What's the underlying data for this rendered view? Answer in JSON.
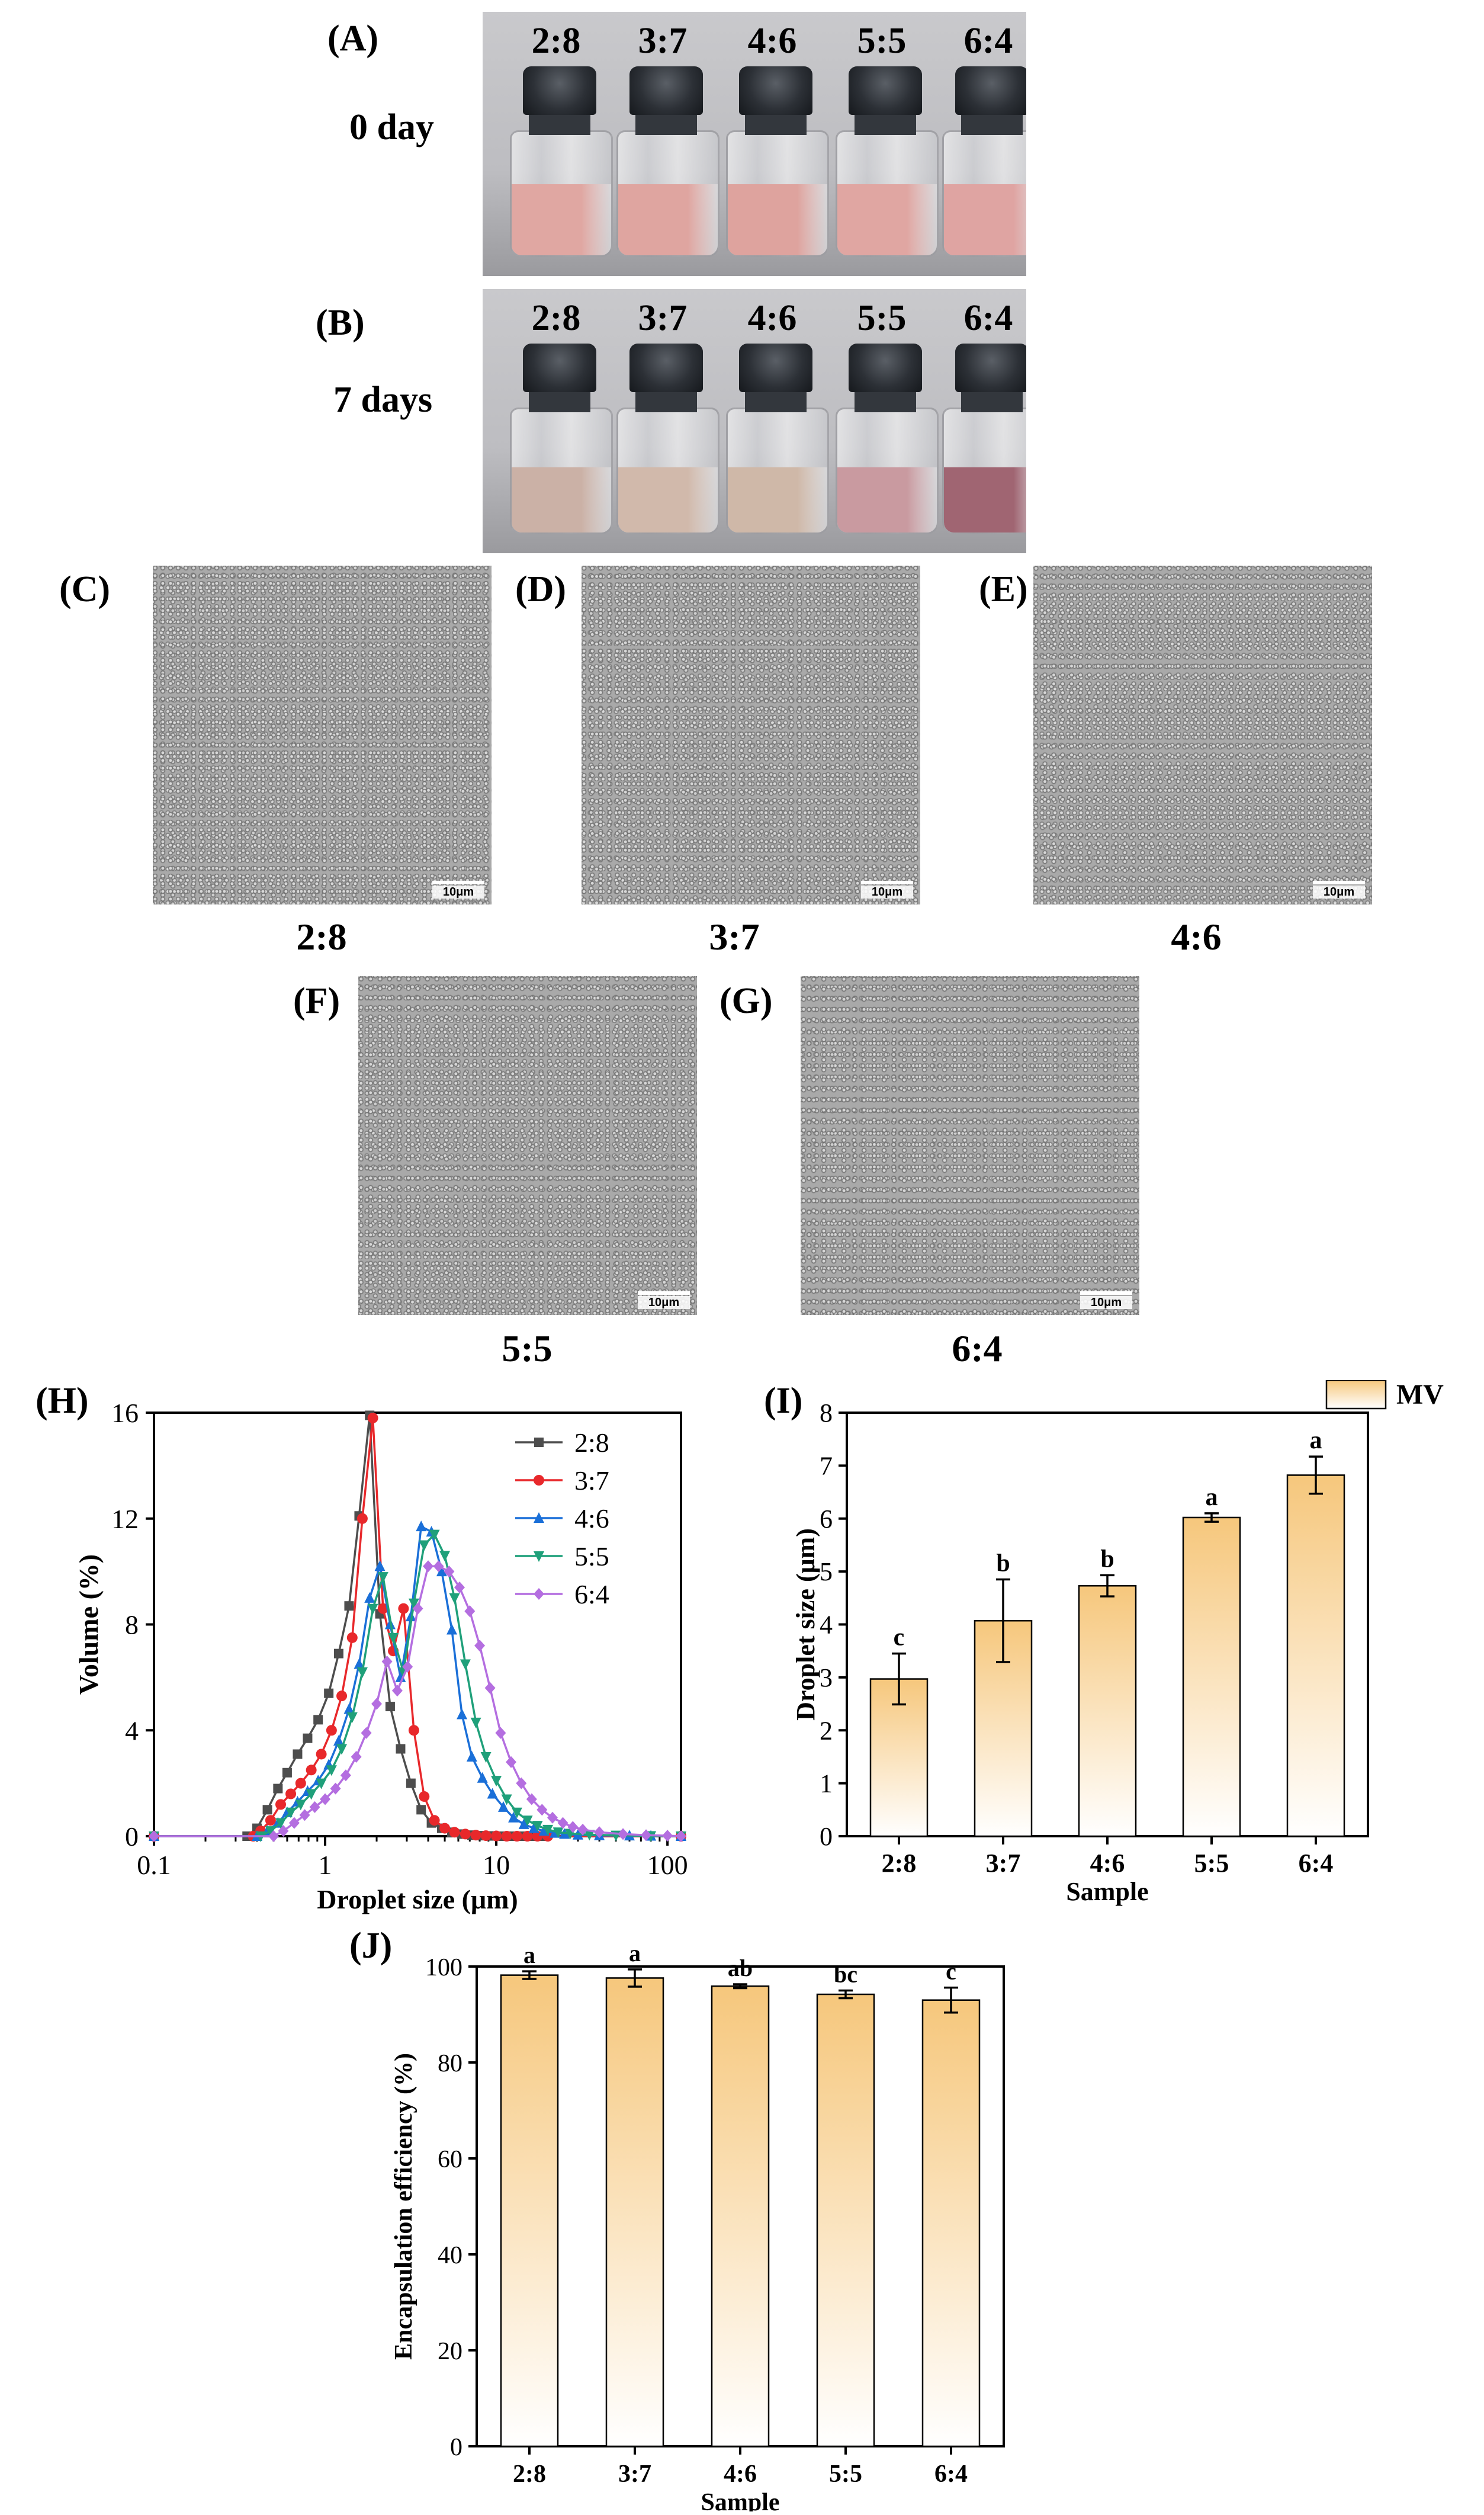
{
  "panels": {
    "A": "(A)",
    "B": "(B)",
    "C": "(C)",
    "D": "(D)",
    "E": "(E)",
    "F": "(F)",
    "G": "(G)",
    "H": "(H)",
    "I": "(I)",
    "J": "(J)"
  },
  "day_labels": {
    "day0": "0 day",
    "day7": "7 days"
  },
  "ratios": [
    "2:8",
    "3:7",
    "4:6",
    "5:5",
    "6:4"
  ],
  "vial_colors": {
    "day0": [
      "#e0a7a2",
      "#dfa5a0",
      "#dea39e",
      "#e0a6a2",
      "#dfa4a2"
    ],
    "day7": [
      "#cbb1a6",
      "#d1b9ab",
      "#cfb8a8",
      "#c99aa0",
      "#a06572"
    ]
  },
  "micrographs": {
    "scale_bar": "10μm",
    "labels": {
      "C": "2:8",
      "D": "3:7",
      "E": "4:6",
      "F": "5:5",
      "G": "6:4"
    }
  },
  "chart_data": [
    {
      "id": "H",
      "type": "line",
      "xscale": "log",
      "xlabel": "Droplet size (μm)",
      "ylabel": "Volume (%)",
      "xlim": [
        0.1,
        120
      ],
      "ylim": [
        0,
        16
      ],
      "xticks": [
        0.1,
        1,
        10,
        100
      ],
      "xtick_labels": [
        "0.1",
        "1",
        "10",
        "100"
      ],
      "yticks": [
        0,
        4,
        8,
        12,
        16
      ],
      "legend": "top-right",
      "series": [
        {
          "name": "2:8",
          "color": "#4d4d4d",
          "marker": "square",
          "x": [
            0.1,
            0.35,
            0.4,
            0.46,
            0.53,
            0.6,
            0.69,
            0.79,
            0.91,
            1.05,
            1.2,
            1.38,
            1.58,
            1.82,
            2.09,
            2.4,
            2.76,
            3.17,
            3.64,
            4.18,
            4.8,
            5.5,
            6.3,
            7.2,
            8.3,
            9.5,
            11,
            12.6,
            14.5,
            16.6,
            19,
            120
          ],
          "y": [
            0,
            0,
            0.3,
            1.0,
            1.8,
            2.4,
            3.1,
            3.7,
            4.4,
            5.4,
            6.9,
            8.7,
            12.1,
            15.9,
            8.4,
            4.9,
            3.3,
            2.0,
            1.0,
            0.5,
            0.3,
            0.15,
            0.08,
            0.04,
            0.02,
            0.01,
            0,
            0,
            0,
            0,
            0,
            0
          ]
        },
        {
          "name": "3:7",
          "color": "#e8282b",
          "marker": "circle",
          "x": [
            0.1,
            0.38,
            0.42,
            0.48,
            0.55,
            0.63,
            0.72,
            0.83,
            0.95,
            1.09,
            1.25,
            1.44,
            1.65,
            1.9,
            2.18,
            2.5,
            2.87,
            3.3,
            3.79,
            4.35,
            5.0,
            5.7,
            6.6,
            7.6,
            8.7,
            10,
            11.5,
            13.2,
            15.2,
            17.4,
            20,
            120
          ],
          "y": [
            0,
            0,
            0.2,
            0.6,
            1.2,
            1.6,
            2.0,
            2.5,
            3.1,
            4.0,
            5.3,
            7.5,
            12.0,
            15.8,
            8.6,
            7.0,
            8.6,
            4.0,
            1.5,
            0.6,
            0.3,
            0.15,
            0.08,
            0.04,
            0.02,
            0.01,
            0,
            0,
            0,
            0,
            0,
            0
          ]
        },
        {
          "name": "4:6",
          "color": "#1a6fd8",
          "marker": "triangle-up",
          "x": [
            0.1,
            0.4,
            0.46,
            0.53,
            0.6,
            0.69,
            0.79,
            0.91,
            1.05,
            1.2,
            1.38,
            1.58,
            1.82,
            2.09,
            2.4,
            2.76,
            3.17,
            3.64,
            4.18,
            4.8,
            5.5,
            6.3,
            7.2,
            8.3,
            9.5,
            11,
            12.6,
            14.5,
            16.6,
            19,
            22,
            25,
            30,
            40,
            60,
            80,
            120
          ],
          "y": [
            0,
            0,
            0.2,
            0.5,
            0.9,
            1.3,
            1.7,
            2.1,
            2.7,
            3.6,
            4.8,
            6.5,
            9.0,
            10.2,
            8.0,
            6.0,
            8.3,
            11.7,
            11.5,
            10.0,
            7.8,
            4.6,
            3.0,
            2.2,
            1.6,
            1.1,
            0.7,
            0.45,
            0.3,
            0.2,
            0.12,
            0.08,
            0.05,
            0.03,
            0.02,
            0.01,
            0
          ]
        },
        {
          "name": "5:5",
          "color": "#1fa07a",
          "marker": "triangle-down",
          "x": [
            0.1,
            0.42,
            0.48,
            0.55,
            0.63,
            0.72,
            0.83,
            0.95,
            1.09,
            1.25,
            1.44,
            1.65,
            1.9,
            2.18,
            2.5,
            2.87,
            3.3,
            3.79,
            4.35,
            5.0,
            5.7,
            6.6,
            7.6,
            8.7,
            10,
            11.5,
            13.2,
            15.2,
            17.4,
            20,
            23,
            27,
            35,
            50,
            80,
            120
          ],
          "y": [
            0,
            0,
            0.2,
            0.5,
            0.9,
            1.2,
            1.6,
            2.0,
            2.5,
            3.3,
            4.5,
            6.2,
            8.6,
            9.8,
            7.5,
            6.2,
            8.8,
            11.0,
            11.4,
            10.6,
            9.0,
            6.5,
            4.3,
            3.0,
            2.1,
            1.4,
            0.9,
            0.6,
            0.4,
            0.25,
            0.15,
            0.1,
            0.06,
            0.03,
            0.01,
            0
          ]
        },
        {
          "name": "6:4",
          "color": "#b46ee0",
          "marker": "diamond",
          "x": [
            0.1,
            0.5,
            0.57,
            0.66,
            0.76,
            0.87,
            1.0,
            1.15,
            1.32,
            1.52,
            1.74,
            2.0,
            2.3,
            2.64,
            3.03,
            3.48,
            4.0,
            4.6,
            5.3,
            6.1,
            7.0,
            8.0,
            9.2,
            10.6,
            12.2,
            14,
            16.1,
            18.5,
            21.3,
            24.5,
            28,
            32,
            40,
            55,
            75,
            100,
            120
          ],
          "y": [
            0,
            0,
            0.2,
            0.5,
            0.8,
            1.1,
            1.4,
            1.8,
            2.3,
            3.0,
            3.9,
            5.0,
            6.6,
            5.5,
            6.4,
            8.6,
            10.2,
            10.2,
            10.0,
            9.4,
            8.5,
            7.2,
            5.6,
            3.9,
            2.8,
            2.0,
            1.4,
            1.0,
            0.7,
            0.5,
            0.35,
            0.25,
            0.15,
            0.08,
            0.04,
            0.02,
            0
          ]
        }
      ]
    },
    {
      "id": "I",
      "type": "bar",
      "xlabel": "Sample",
      "ylabel": "Droplet size (μm)",
      "ylim": [
        0,
        8
      ],
      "yticks": [
        0,
        1,
        2,
        3,
        4,
        5,
        6,
        7,
        8
      ],
      "legend": "top-right",
      "legend_label": "MV",
      "categories": [
        "2:8",
        "3:7",
        "4:6",
        "5:5",
        "6:4"
      ],
      "values": [
        2.97,
        4.07,
        4.73,
        6.02,
        6.82
      ],
      "errors": [
        0.48,
        0.78,
        0.2,
        0.08,
        0.35
      ],
      "letters": [
        "c",
        "b",
        "b",
        "a",
        "a"
      ]
    },
    {
      "id": "J",
      "type": "bar",
      "xlabel": "Sample",
      "ylabel": "Encapsulation efficiency (%)",
      "ylim": [
        0,
        100
      ],
      "yticks": [
        0,
        20,
        40,
        60,
        80,
        100
      ],
      "categories": [
        "2:8",
        "3:7",
        "4:6",
        "5:5",
        "6:4"
      ],
      "values": [
        98.2,
        97.6,
        95.9,
        94.2,
        93.0
      ],
      "errors": [
        0.8,
        1.8,
        0.4,
        0.8,
        2.6
      ],
      "letters": [
        "a",
        "a",
        "ab",
        "bc",
        "c"
      ]
    }
  ]
}
